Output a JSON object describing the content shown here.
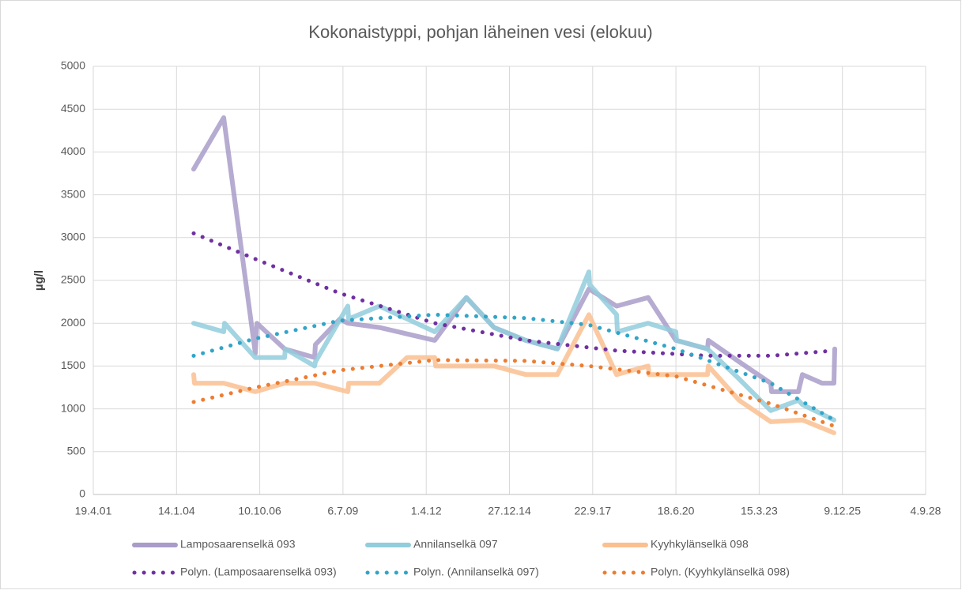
{
  "chart_data": {
    "type": "line",
    "title": "Kokonaistyppi, pohjan läheinen vesi (elokuu)",
    "y_label": "µg/l",
    "xlim": [
      37000,
      47000
    ],
    "xticks": [
      {
        "value": 37000,
        "label": "19.4.01"
      },
      {
        "value": 38000,
        "label": "14.1.04"
      },
      {
        "value": 39000,
        "label": "10.10.06"
      },
      {
        "value": 40000,
        "label": "6.7.09"
      },
      {
        "value": 41000,
        "label": "1.4.12"
      },
      {
        "value": 42000,
        "label": "27.12.14"
      },
      {
        "value": 43000,
        "label": "22.9.17"
      },
      {
        "value": 44000,
        "label": "18.6.20"
      },
      {
        "value": 45000,
        "label": "15.3.23"
      },
      {
        "value": 46000,
        "label": "9.12.25"
      },
      {
        "value": 47000,
        "label": "4.9.28"
      }
    ],
    "ylim": [
      0,
      5000
    ],
    "yticks": [
      0,
      500,
      1000,
      1500,
      2000,
      2500,
      3000,
      3500,
      4000,
      4500,
      5000
    ],
    "grid": true,
    "legend": "bottom",
    "series": [
      {
        "name": "Lamposaarenselkä 093",
        "color": "#a99cc9",
        "style": "solid",
        "x": [
          38206,
          38567,
          38947,
          38966,
          39298,
          39659,
          39669,
          39963,
          40058,
          40438,
          41103,
          41482,
          41815,
          42195,
          42575,
          42954,
          43287,
          43667,
          43999,
          44379,
          44389,
          44759,
          45139,
          45149,
          45471,
          45519,
          45756,
          45898,
          45908
        ],
        "values": [
          3800,
          4400,
          1650,
          2000,
          1700,
          1600,
          1750,
          2050,
          2000,
          1950,
          1800,
          2300,
          1950,
          1800,
          1700,
          2400,
          2200,
          2300,
          1800,
          1700,
          1800,
          1550,
          1300,
          1200,
          1200,
          1400,
          1300,
          1300,
          1700
        ]
      },
      {
        "name": "Annilanselkä 097",
        "color": "#92cddc",
        "style": "solid",
        "x": [
          38206,
          38567,
          38577,
          38947,
          39298,
          39308,
          39659,
          39669,
          40058,
          40068,
          40438,
          41103,
          41482,
          41815,
          42195,
          42575,
          42954,
          42964,
          43287,
          43297,
          43667,
          43999,
          44009,
          44379,
          44759,
          45139,
          45471,
          45519,
          45898
        ],
        "values": [
          2000,
          1900,
          2000,
          1600,
          1600,
          1700,
          1500,
          1550,
          2200,
          2050,
          2200,
          1900,
          2300,
          1950,
          1800,
          1700,
          2600,
          2450,
          2100,
          1900,
          2000,
          1900,
          1800,
          1700,
          1350,
          980,
          1100,
          1050,
          870
        ]
      },
      {
        "name": "Kyyhkylänselkä 098",
        "color": "#fac090",
        "style": "solid",
        "x": [
          38206,
          38216,
          38567,
          38947,
          39298,
          39659,
          40058,
          40068,
          40438,
          40770,
          41103,
          41113,
          41815,
          42195,
          42575,
          42954,
          43287,
          43667,
          43677,
          44379,
          44389,
          44759,
          45139,
          45519,
          45898
        ],
        "values": [
          1400,
          1300,
          1300,
          1200,
          1300,
          1300,
          1200,
          1300,
          1300,
          1600,
          1600,
          1500,
          1500,
          1400,
          1400,
          2100,
          1400,
          1500,
          1400,
          1400,
          1500,
          1100,
          850,
          870,
          720
        ]
      },
      {
        "name": "Polyn. (Lamposaarenselkä 093)",
        "color": "#7030a0",
        "style": "dot",
        "x": [
          38206,
          38947,
          39963,
          41103,
          42195,
          43287,
          44379,
          45139,
          45898
        ],
        "values": [
          3050,
          2750,
          2350,
          2000,
          1800,
          1680,
          1620,
          1620,
          1680
        ]
      },
      {
        "name": "Polyn. (Annilanselkä 097)",
        "color": "#31a5c8",
        "style": "dot",
        "x": [
          38206,
          38947,
          39963,
          41103,
          42195,
          42954,
          43999,
          45139,
          45898
        ],
        "values": [
          1620,
          1820,
          2030,
          2100,
          2060,
          1980,
          1700,
          1300,
          870
        ]
      },
      {
        "name": "Polyn. (Kyyhkylänselkä 098)",
        "color": "#ed7d31",
        "style": "dot",
        "x": [
          38206,
          38947,
          39963,
          41103,
          42195,
          42954,
          43999,
          45139,
          45898
        ],
        "values": [
          1080,
          1250,
          1450,
          1570,
          1560,
          1500,
          1380,
          1060,
          800
        ]
      }
    ]
  }
}
